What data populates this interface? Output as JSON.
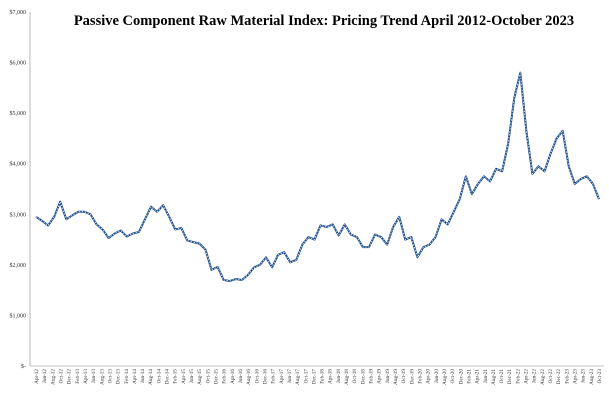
{
  "colors": {
    "line": "#1f4e8c",
    "line_highlight": "#ffffff",
    "axis": "#888888",
    "text": "#333333"
  },
  "chart_data": {
    "type": "line",
    "title": "Passive Component Raw Material Index: Pricing Trend April 2012-October 2023",
    "xlabel": "",
    "ylabel": "",
    "ylim": [
      0,
      7000
    ],
    "yticks": [
      0,
      1000,
      2000,
      3000,
      4000,
      5000,
      6000,
      7000
    ],
    "ytick_labels": [
      "$-",
      "$1,000",
      "$2,000",
      "$3,000",
      "$4,000",
      "$5,000",
      "$6,000",
      "$7,000"
    ],
    "grid": false,
    "legend": "none",
    "xtick_labels": [
      "Apr-12",
      "Jun-12",
      "Aug-12",
      "Oct-12",
      "Dec-12",
      "Feb-13",
      "Apr-13",
      "Jun-13",
      "Aug-13",
      "Oct-13",
      "Dec-13",
      "Feb-14",
      "Apr-14",
      "Jun-14",
      "Aug-14",
      "Oct-14",
      "Dec-14",
      "Feb-15",
      "Apr-15",
      "Jun-15",
      "Aug-15",
      "Oct-15",
      "Dec-15",
      "Feb-16",
      "Apr-16",
      "Jun-16",
      "Aug-16",
      "Oct-16",
      "Dec-16",
      "Feb-17",
      "Apr-17",
      "Jun-17",
      "Aug-17",
      "Oct-17",
      "Dec-17",
      "Feb-18",
      "Apr-18",
      "Jun-18",
      "Aug-18",
      "Oct-18",
      "Dec-18",
      "Feb-19",
      "Apr-19",
      "Jun-19",
      "Aug-19",
      "Oct-19",
      "Dec-19",
      "Feb-20",
      "Apr-20",
      "Jun-20",
      "Aug-20",
      "Oct-20",
      "Dec-20",
      "Feb-21",
      "Apr-21",
      "Jun-21",
      "Aug-21",
      "Oct-21",
      "Dec-21",
      "Feb-22",
      "Apr-22",
      "Jun-22",
      "Aug-22",
      "Oct-22",
      "Dec-22",
      "Feb-23",
      "Apr-23",
      "Jun-23",
      "Aug-23",
      "Oct-23"
    ],
    "series": [
      {
        "values": [
          2950,
          2870,
          2780,
          2950,
          3250,
          2900,
          2980,
          3050,
          3050,
          3000,
          2800,
          2700,
          2530,
          2620,
          2680,
          2560,
          2620,
          2650,
          2900,
          3150,
          3050,
          3180,
          2950,
          2700,
          2730,
          2480,
          2450,
          2420,
          2300,
          1900,
          1960,
          1700,
          1680,
          1720,
          1700,
          1800,
          1950,
          2000,
          2150,
          1950,
          2200,
          2250,
          2050,
          2100,
          2400,
          2550,
          2500,
          2780,
          2750,
          2800,
          2580,
          2800,
          2600,
          2550,
          2350,
          2350,
          2600,
          2550,
          2400,
          2750,
          2950,
          2500,
          2550,
          2150,
          2350,
          2400,
          2550,
          2900,
          2800,
          3050,
          3300,
          3750,
          3400,
          3600,
          3750,
          3650,
          3900,
          3850,
          4400,
          5300,
          5800,
          4650,
          3800,
          3950,
          3850,
          4200,
          4500,
          4650,
          3950,
          3600,
          3700,
          3750,
          3600,
          3300
        ]
      }
    ]
  }
}
